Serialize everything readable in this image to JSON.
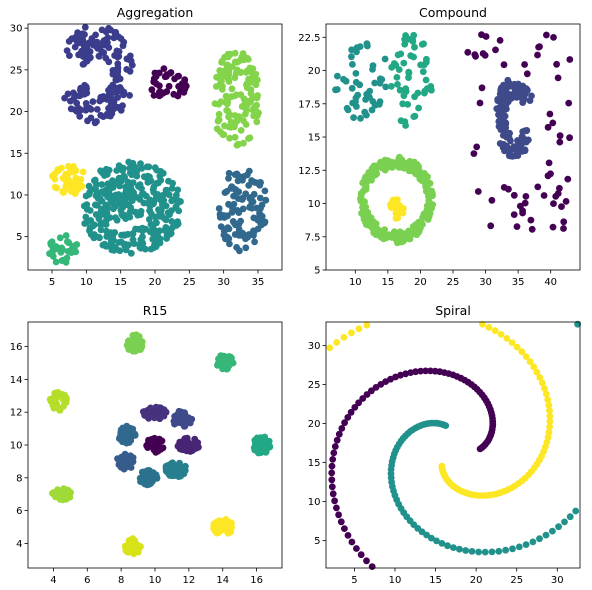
{
  "chart_data": [
    {
      "type": "scatter",
      "title": "Aggregation",
      "xlim": [
        1.5,
        38.5
      ],
      "ylim": [
        1.0,
        30.5
      ],
      "xticks": [
        5,
        10,
        15,
        20,
        25,
        30,
        35
      ],
      "yticks": [
        5,
        10,
        15,
        20,
        25,
        30
      ],
      "clusters": [
        {
          "shape": "moon",
          "cx": 11.5,
          "cy": 24.5,
          "r": 5.6,
          "thick": 3.6,
          "open": 0,
          "n": 180,
          "color": "#3b3d8c"
        },
        {
          "shape": "blob",
          "cx": 21.5,
          "cy": 23.2,
          "rx": 3.3,
          "ry": 2.0,
          "n": 40,
          "color": "#440154"
        },
        {
          "shape": "blob",
          "cx": 31.8,
          "cy": 21.5,
          "rx": 3.6,
          "ry": 5.8,
          "n": 130,
          "color": "#84d44b"
        },
        {
          "shape": "blob",
          "cx": 7.5,
          "cy": 11.8,
          "rx": 2.6,
          "ry": 1.8,
          "n": 40,
          "color": "#fde725"
        },
        {
          "shape": "blob",
          "cx": 16.5,
          "cy": 8.5,
          "rx": 7.4,
          "ry": 5.5,
          "n": 320,
          "color": "#21918c"
        },
        {
          "shape": "blob",
          "cx": 6.5,
          "cy": 3.6,
          "rx": 2.2,
          "ry": 1.8,
          "n": 35,
          "color": "#35b779"
        },
        {
          "shape": "blob",
          "cx": 32.8,
          "cy": 8.3,
          "rx": 3.6,
          "ry": 5.2,
          "n": 110,
          "color": "#31688e"
        }
      ]
    },
    {
      "type": "scatter",
      "title": "Compound",
      "xlim": [
        5.5,
        44.5
      ],
      "ylim": [
        5.0,
        23.5
      ],
      "xticks": [
        10,
        15,
        20,
        25,
        30,
        35,
        40
      ],
      "yticks": [
        5.0,
        7.5,
        10.0,
        12.5,
        15.0,
        17.5,
        20.0,
        22.5
      ],
      "clusters": [
        {
          "shape": "blob",
          "cx": 11.0,
          "cy": 19.3,
          "rx": 4.2,
          "ry": 3.0,
          "n": 45,
          "color": "#21918c"
        },
        {
          "shape": "blob",
          "cx": 18.5,
          "cy": 19.2,
          "rx": 3.3,
          "ry": 3.6,
          "n": 50,
          "color": "#22a884"
        },
        {
          "shape": "ring",
          "cx": 16.3,
          "cy": 10.3,
          "rx": 5.2,
          "ry": 2.8,
          "thick": 0.9,
          "n": 230,
          "color": "#7ad151"
        },
        {
          "shape": "blob",
          "cx": 16.3,
          "cy": 9.6,
          "rx": 1.1,
          "ry": 0.8,
          "n": 25,
          "color": "#fde725"
        },
        {
          "shape": "moon",
          "cx": 34.5,
          "cy": 16.5,
          "r": 3.0,
          "thick": 1.6,
          "open": 3.14,
          "n": 130,
          "color": "#3e4a89"
        },
        {
          "shape": "uniform",
          "x0": 27,
          "x1": 43,
          "y0": 8,
          "y1": 22.8,
          "n": 75,
          "color": "#440154"
        }
      ]
    },
    {
      "type": "scatter",
      "title": "R15",
      "xlim": [
        2.5,
        17.5
      ],
      "ylim": [
        2.5,
        17.5
      ],
      "xticks": [
        4,
        6,
        8,
        10,
        12,
        14,
        16
      ],
      "yticks": [
        4,
        6,
        8,
        10,
        12,
        14,
        16
      ],
      "clusters": [
        {
          "shape": "blob",
          "cx": 8.8,
          "cy": 16.2,
          "rx": 0.5,
          "ry": 0.55,
          "n": 40,
          "color": "#7ad151"
        },
        {
          "shape": "blob",
          "cx": 14.1,
          "cy": 15.0,
          "rx": 0.55,
          "ry": 0.5,
          "n": 40,
          "color": "#35b779"
        },
        {
          "shape": "blob",
          "cx": 4.3,
          "cy": 12.7,
          "rx": 0.5,
          "ry": 0.6,
          "n": 40,
          "color": "#b5de2b"
        },
        {
          "shape": "blob",
          "cx": 16.3,
          "cy": 10.0,
          "rx": 0.5,
          "ry": 0.55,
          "n": 40,
          "color": "#22a884"
        },
        {
          "shape": "blob",
          "cx": 4.5,
          "cy": 7.0,
          "rx": 0.6,
          "ry": 0.35,
          "n": 40,
          "color": "#a0da39"
        },
        {
          "shape": "blob",
          "cx": 8.7,
          "cy": 3.8,
          "rx": 0.5,
          "ry": 0.5,
          "n": 40,
          "color": "#d8e219"
        },
        {
          "shape": "blob",
          "cx": 14.0,
          "cy": 5.0,
          "rx": 0.6,
          "ry": 0.5,
          "n": 40,
          "color": "#fde725"
        },
        {
          "shape": "blob",
          "cx": 10.0,
          "cy": 12.0,
          "rx": 0.7,
          "ry": 0.45,
          "n": 40,
          "color": "#46327e"
        },
        {
          "shape": "blob",
          "cx": 11.6,
          "cy": 11.6,
          "rx": 0.6,
          "ry": 0.5,
          "n": 40,
          "color": "#3e4a89"
        },
        {
          "shape": "blob",
          "cx": 12.0,
          "cy": 10.0,
          "rx": 0.65,
          "ry": 0.45,
          "n": 40,
          "color": "#482475"
        },
        {
          "shape": "blob",
          "cx": 11.2,
          "cy": 8.5,
          "rx": 0.7,
          "ry": 0.45,
          "n": 40,
          "color": "#277f8e"
        },
        {
          "shape": "blob",
          "cx": 9.6,
          "cy": 8.0,
          "rx": 0.55,
          "ry": 0.45,
          "n": 40,
          "color": "#2c728e"
        },
        {
          "shape": "blob",
          "cx": 8.3,
          "cy": 9.0,
          "rx": 0.55,
          "ry": 0.5,
          "n": 40,
          "color": "#365c8d"
        },
        {
          "shape": "blob",
          "cx": 8.3,
          "cy": 10.6,
          "rx": 0.55,
          "ry": 0.55,
          "n": 40,
          "color": "#31688e"
        },
        {
          "shape": "blob",
          "cx": 10.0,
          "cy": 10.0,
          "rx": 0.6,
          "ry": 0.45,
          "n": 40,
          "color": "#440154"
        }
      ]
    },
    {
      "type": "scatter",
      "title": "Spiral",
      "xlim": [
        1.5,
        32.8
      ],
      "ylim": [
        1.5,
        33.0
      ],
      "xticks": [
        5,
        10,
        15,
        20,
        25,
        30
      ],
      "yticks": [
        5,
        10,
        15,
        20,
        25,
        30
      ],
      "spirals": [
        {
          "center": [
            17.5,
            17.0
          ],
          "r0": 3.0,
          "k": 2.3,
          "t0": 1.65,
          "t1": 7.6,
          "n": 105,
          "phase": 0.35,
          "color": "#21918c"
        },
        {
          "center": [
            17.5,
            17.0
          ],
          "r0": 3.0,
          "k": 2.3,
          "t0": 1.65,
          "t1": 7.6,
          "n": 110,
          "phase": 2.45,
          "color": "#fde725"
        },
        {
          "center": [
            17.5,
            17.0
          ],
          "r0": 3.0,
          "k": 2.3,
          "t0": 1.65,
          "t1": 7.6,
          "n": 110,
          "phase": 4.55,
          "color": "#440154"
        }
      ]
    }
  ]
}
